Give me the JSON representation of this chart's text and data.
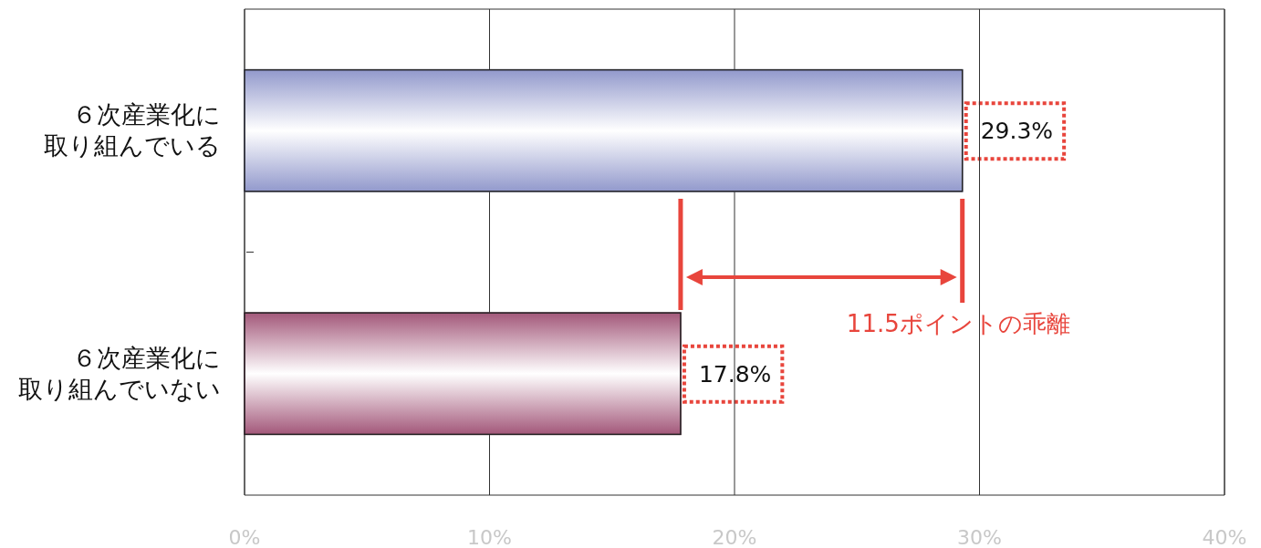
{
  "chart_data": {
    "type": "bar",
    "orientation": "horizontal",
    "categories": [
      "６次産業化に取り組んでいる",
      "６次産業化に取り組んでいない"
    ],
    "series": [
      {
        "colors": [
          "#9299cc",
          "#a3587a"
        ],
        "values": [
          29.3,
          17.8
        ],
        "value_labels": [
          "29.3%",
          "17.8%"
        ]
      }
    ],
    "xlim": [
      0,
      40
    ],
    "xticks": [
      {
        "value": 0,
        "label": "0%"
      },
      {
        "value": 10,
        "label": "10%"
      },
      {
        "value": 20,
        "label": "20%"
      },
      {
        "value": 30,
        "label": "30%"
      },
      {
        "value": 40,
        "label": "40%"
      }
    ],
    "grid": "x",
    "annotations": [
      "11.5ポイントの乖離"
    ]
  }
}
